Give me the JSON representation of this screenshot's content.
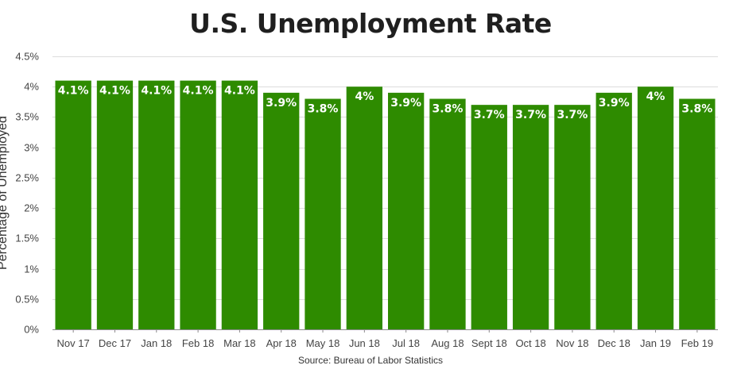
{
  "chart_data": {
    "type": "bar",
    "title": "U.S. Unemployment Rate",
    "ylabel": "Percentage of Unemployed",
    "xlabel": "",
    "source": "Source: Bureau of Labor Statistics",
    "ylim": [
      0,
      4.5
    ],
    "yticks": [
      0,
      0.5,
      1,
      1.5,
      2,
      2.5,
      3,
      3.5,
      4,
      4.5
    ],
    "ytick_suffix": "%",
    "grid": true,
    "bar_color": "#2e8b00",
    "categories": [
      "Nov 17",
      "Dec 17",
      "Jan 18",
      "Feb 18",
      "Mar 18",
      "Apr 18",
      "May 18",
      "Jun 18",
      "Jul 18",
      "Aug 18",
      "Sept 18",
      "Oct 18",
      "Nov 18",
      "Dec 18",
      "Jan 19",
      "Feb 19"
    ],
    "values": [
      4.1,
      4.1,
      4.1,
      4.1,
      4.1,
      3.9,
      3.8,
      4.0,
      3.9,
      3.8,
      3.7,
      3.7,
      3.7,
      3.9,
      4.0,
      3.8
    ],
    "data_labels": [
      "4.1%",
      "4.1%",
      "4.1%",
      "4.1%",
      "4.1%",
      "3.9%",
      "3.8%",
      "4%",
      "3.9%",
      "3.8%",
      "3.7%",
      "3.7%",
      "3.7%",
      "3.9%",
      "4%",
      "3.8%"
    ]
  }
}
